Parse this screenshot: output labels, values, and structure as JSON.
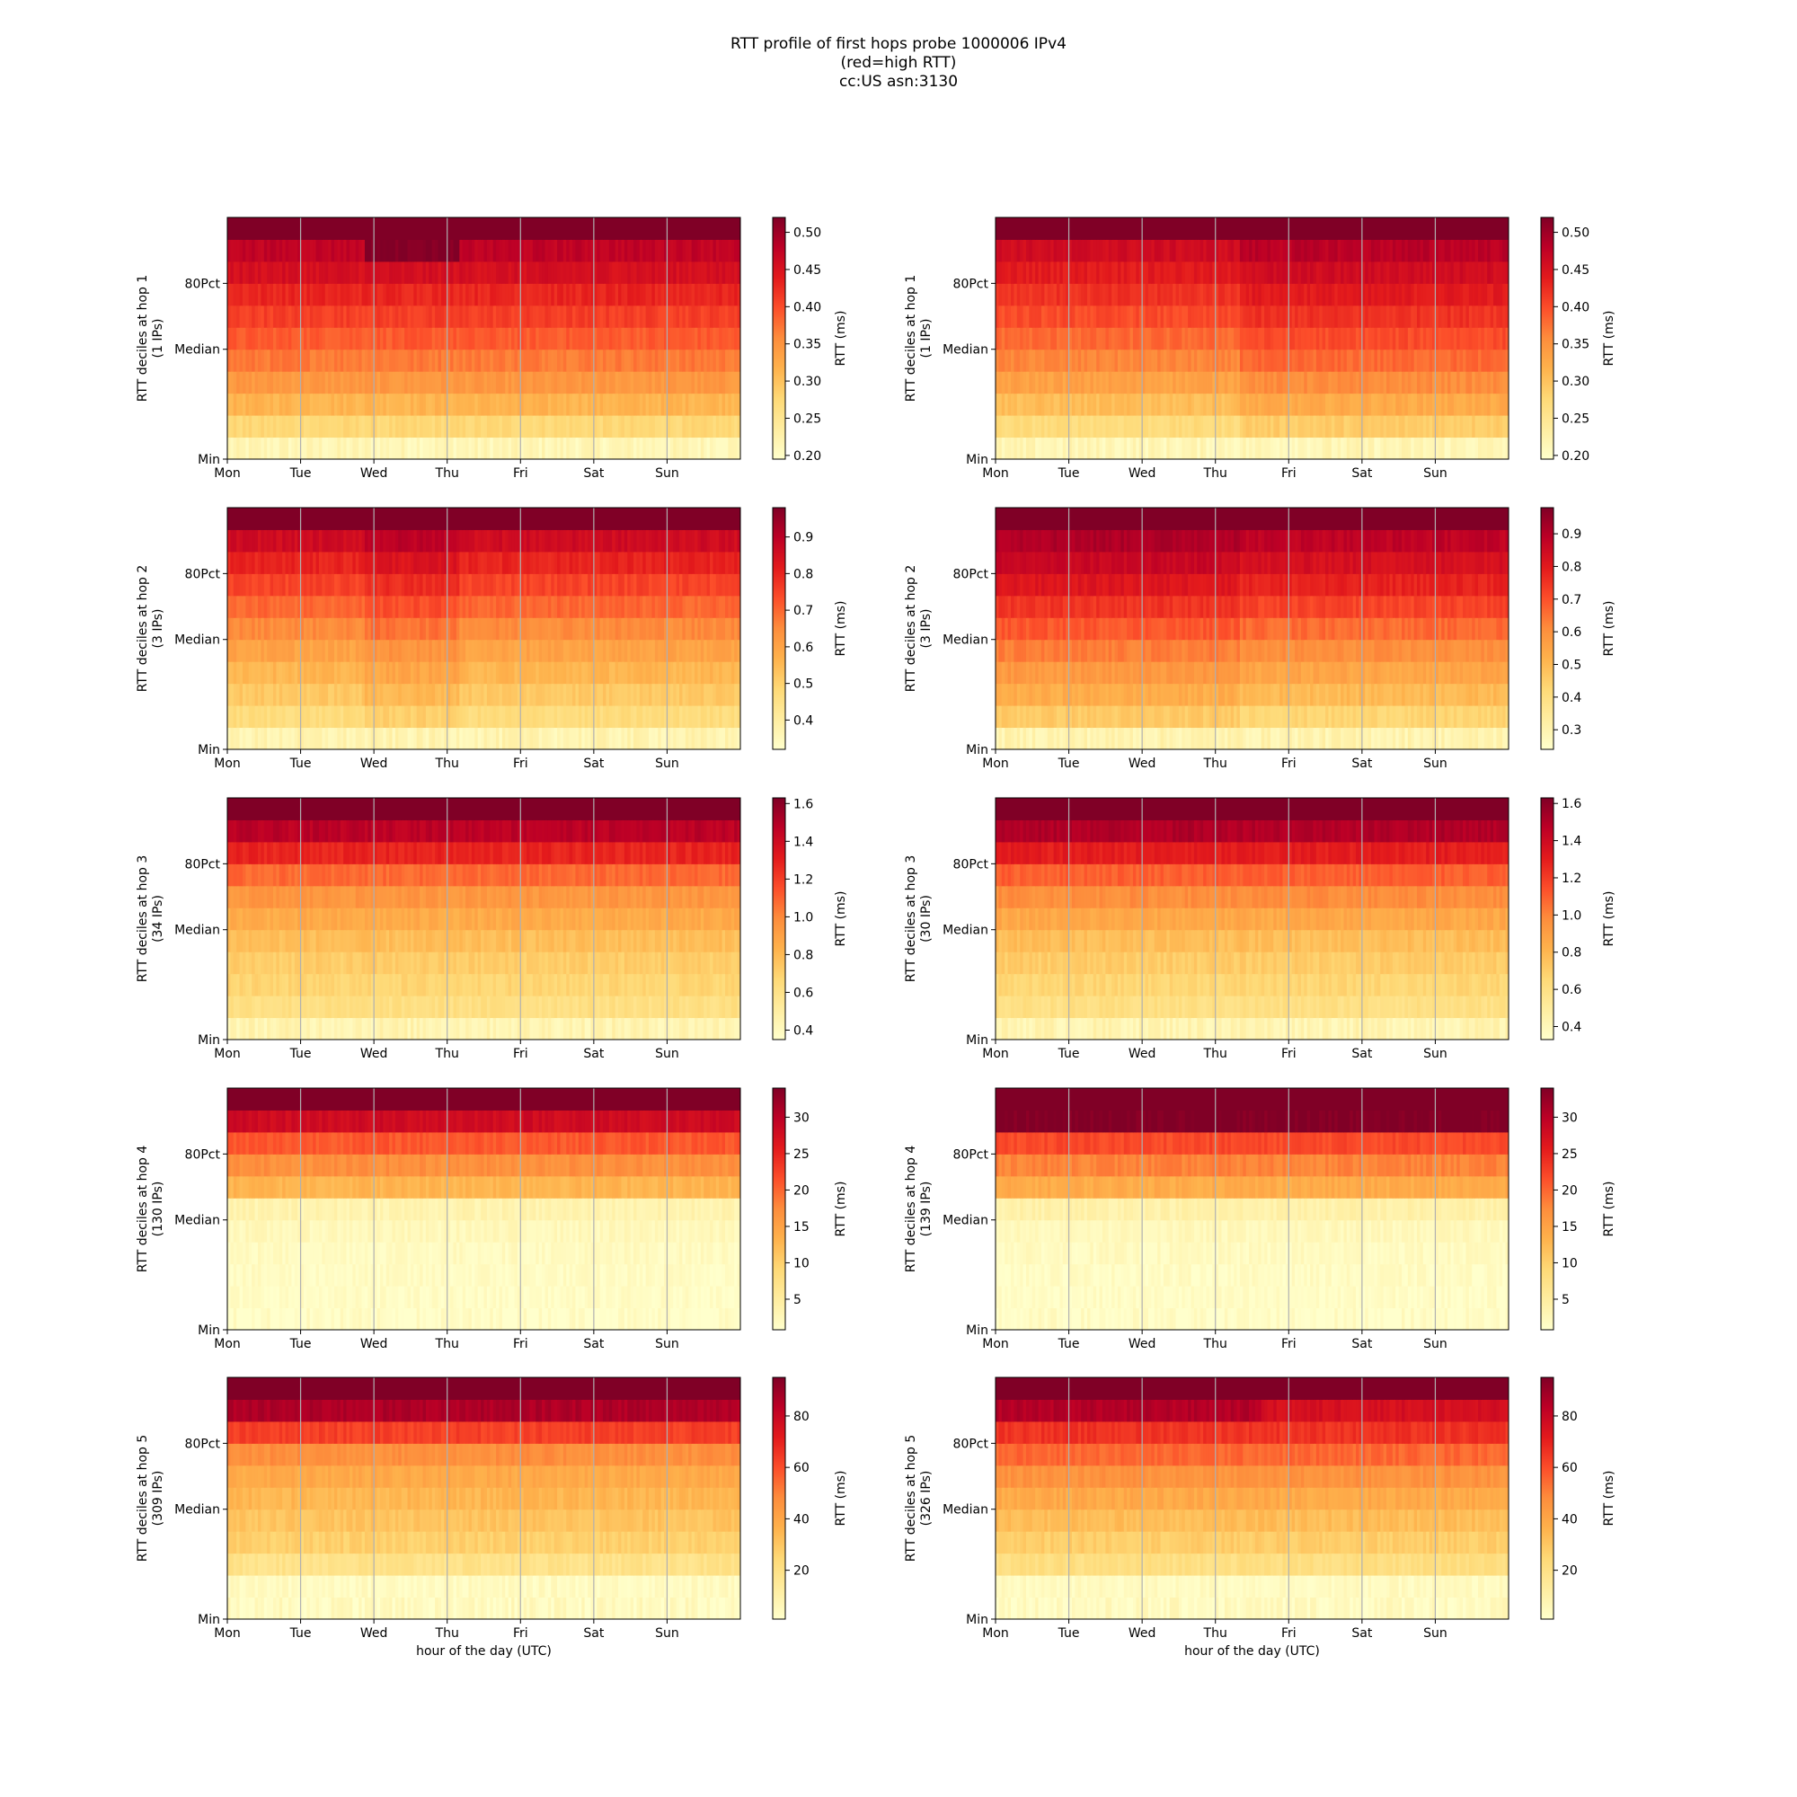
{
  "figure": {
    "title_lines": [
      "RTT profile of first hops probe 1000006 IPv4",
      "(red=high RTT)",
      "cc:US asn:3130"
    ]
  },
  "chart_data": [
    {
      "type": "heatmap",
      "hop": 1,
      "column": "left",
      "ylabel_lines": [
        "RTT deciles at hop 1",
        "(1 IPs)"
      ],
      "xlabel": "",
      "x_ticks": [
        "Mon",
        "Tue",
        "Wed",
        "Thu",
        "Fri",
        "Sat",
        "Sun"
      ],
      "y_ticks": [
        "Min",
        "Median",
        "80Pct"
      ],
      "colorbar": {
        "label": "RTT (ms)",
        "vmin": 0.195,
        "vmax": 0.52,
        "ticks": [
          0.2,
          0.25,
          0.3,
          0.35,
          0.4,
          0.45,
          0.5
        ],
        "tick_labels": [
          "0.20",
          "0.25",
          "0.30",
          "0.35",
          "0.40",
          "0.45",
          "0.50"
        ]
      },
      "rows_lo_to_hi": [
        0.215,
        0.275,
        0.315,
        0.345,
        0.37,
        0.39,
        0.41,
        0.43,
        0.455,
        0.475,
        0.52
      ],
      "anomaly": {
        "start_day": 1.85,
        "end_day": 3.15,
        "delta": 0.045,
        "affects_top_rows_from": 9
      }
    },
    {
      "type": "heatmap",
      "hop": 1,
      "column": "right",
      "ylabel_lines": [
        "RTT deciles at hop 1",
        "(1 IPs)"
      ],
      "xlabel": "",
      "x_ticks": [
        "Mon",
        "Tue",
        "Wed",
        "Thu",
        "Fri",
        "Sat",
        "Sun"
      ],
      "y_ticks": [
        "Min",
        "Median",
        "80Pct"
      ],
      "colorbar": {
        "label": "RTT (ms)",
        "vmin": 0.195,
        "vmax": 0.52,
        "ticks": [
          0.2,
          0.25,
          0.3,
          0.35,
          0.4,
          0.45,
          0.5
        ],
        "tick_labels": [
          "0.20",
          "0.25",
          "0.30",
          "0.35",
          "0.40",
          "0.45",
          "0.50"
        ]
      },
      "rows_lo_to_hi": [
        0.215,
        0.29,
        0.325,
        0.355,
        0.38,
        0.4,
        0.42,
        0.44,
        0.46,
        0.48,
        0.52
      ],
      "anomaly": {
        "start_day": 0.0,
        "end_day": 3.3,
        "delta": -0.02,
        "affects_top_rows_from": 1
      }
    },
    {
      "type": "heatmap",
      "hop": 2,
      "column": "left",
      "ylabel_lines": [
        "RTT deciles at hop 2",
        "(3 IPs)"
      ],
      "xlabel": "",
      "x_ticks": [
        "Mon",
        "Tue",
        "Wed",
        "Thu",
        "Fri",
        "Sat",
        "Sun"
      ],
      "y_ticks": [
        "Min",
        "Median",
        "80Pct"
      ],
      "colorbar": {
        "label": "RTT (ms)",
        "vmin": 0.32,
        "vmax": 0.98,
        "ticks": [
          0.4,
          0.5,
          0.6,
          0.7,
          0.8,
          0.9
        ],
        "tick_labels": [
          "0.4",
          "0.5",
          "0.6",
          "0.7",
          "0.8",
          "0.9"
        ]
      },
      "rows_lo_to_hi": [
        0.37,
        0.47,
        0.52,
        0.56,
        0.6,
        0.65,
        0.7,
        0.75,
        0.8,
        0.86,
        0.98
      ],
      "anomaly": {
        "start_day": 1.85,
        "end_day": 3.15,
        "delta": 0.035,
        "affects_top_rows_from": 1
      }
    },
    {
      "type": "heatmap",
      "hop": 2,
      "column": "right",
      "ylabel_lines": [
        "RTT deciles at hop 2",
        "(3 IPs)"
      ],
      "xlabel": "",
      "x_ticks": [
        "Mon",
        "Tue",
        "Wed",
        "Thu",
        "Fri",
        "Sat",
        "Sun"
      ],
      "y_ticks": [
        "Min",
        "Median",
        "80Pct"
      ],
      "colorbar": {
        "label": "RTT (ms)",
        "vmin": 0.24,
        "vmax": 0.98,
        "ticks": [
          0.3,
          0.4,
          0.5,
          0.6,
          0.7,
          0.8,
          0.9
        ],
        "tick_labels": [
          "0.3",
          "0.4",
          "0.5",
          "0.6",
          "0.7",
          "0.8",
          "0.9"
        ]
      },
      "rows_lo_to_hi": [
        0.3,
        0.43,
        0.5,
        0.55,
        0.6,
        0.66,
        0.72,
        0.78,
        0.83,
        0.88,
        0.98
      ],
      "anomaly": {
        "start_day": 0.0,
        "end_day": 3.3,
        "delta": 0.03,
        "affects_top_rows_from": 1
      }
    },
    {
      "type": "heatmap",
      "hop": 3,
      "column": "left",
      "ylabel_lines": [
        "RTT deciles at hop 3",
        "(34 IPs)"
      ],
      "xlabel": "",
      "x_ticks": [
        "Mon",
        "Tue",
        "Wed",
        "Thu",
        "Fri",
        "Sat",
        "Sun"
      ],
      "y_ticks": [
        "Min",
        "Median",
        "80Pct"
      ],
      "colorbar": {
        "label": "RTT (ms)",
        "vmin": 0.35,
        "vmax": 1.63,
        "ticks": [
          0.4,
          0.6,
          0.8,
          1.0,
          1.2,
          1.4,
          1.6
        ],
        "tick_labels": [
          "0.4",
          "0.6",
          "0.8",
          "1.0",
          "1.2",
          "1.4",
          "1.6"
        ]
      },
      "rows_lo_to_hi": [
        0.45,
        0.62,
        0.68,
        0.72,
        0.78,
        0.86,
        0.95,
        1.08,
        1.28,
        1.47,
        1.63
      ],
      "anomaly": null
    },
    {
      "type": "heatmap",
      "hop": 3,
      "column": "right",
      "ylabel_lines": [
        "RTT deciles at hop 3",
        "(30 IPs)"
      ],
      "xlabel": "",
      "x_ticks": [
        "Mon",
        "Tue",
        "Wed",
        "Thu",
        "Fri",
        "Sat",
        "Sun"
      ],
      "y_ticks": [
        "Min",
        "Median",
        "80Pct"
      ],
      "colorbar": {
        "label": "RTT (ms)",
        "vmin": 0.33,
        "vmax": 1.63,
        "ticks": [
          0.4,
          0.6,
          0.8,
          1.0,
          1.2,
          1.4,
          1.6
        ],
        "tick_labels": [
          "0.4",
          "0.6",
          "0.8",
          "1.0",
          "1.2",
          "1.4",
          "1.6"
        ]
      },
      "rows_lo_to_hi": [
        0.43,
        0.6,
        0.66,
        0.71,
        0.77,
        0.86,
        0.97,
        1.1,
        1.3,
        1.5,
        1.63
      ],
      "anomaly": null
    },
    {
      "type": "heatmap",
      "hop": 4,
      "column": "left",
      "ylabel_lines": [
        "RTT deciles at hop 4",
        "(130 IPs)"
      ],
      "xlabel": "",
      "x_ticks": [
        "Mon",
        "Tue",
        "Wed",
        "Thu",
        "Fri",
        "Sat",
        "Sun"
      ],
      "y_ticks": [
        "Min",
        "Median",
        "80Pct"
      ],
      "colorbar": {
        "label": "RTT (ms)",
        "vmin": 0.8,
        "vmax": 34,
        "ticks": [
          5,
          10,
          15,
          20,
          25,
          30
        ],
        "tick_labels": [
          "5",
          "10",
          "15",
          "20",
          "25",
          "30"
        ]
      },
      "rows_lo_to_hi": [
        1.2,
        1.4,
        1.6,
        1.9,
        2.4,
        3.5,
        13,
        17,
        21,
        28,
        34
      ],
      "anomaly": null
    },
    {
      "type": "heatmap",
      "hop": 4,
      "column": "right",
      "ylabel_lines": [
        "RTT deciles at hop 4",
        "(139 IPs)"
      ],
      "xlabel": "",
      "x_ticks": [
        "Mon",
        "Tue",
        "Wed",
        "Thu",
        "Fri",
        "Sat",
        "Sun"
      ],
      "y_ticks": [
        "Min",
        "Median",
        "80Pct"
      ],
      "colorbar": {
        "label": "RTT (ms)",
        "vmin": 0.8,
        "vmax": 34,
        "ticks": [
          5,
          10,
          15,
          20,
          25,
          30
        ],
        "tick_labels": [
          "5",
          "10",
          "15",
          "20",
          "25",
          "30"
        ]
      },
      "rows_lo_to_hi": [
        1.2,
        1.4,
        1.6,
        1.9,
        2.4,
        4,
        14,
        18,
        22,
        34,
        34
      ],
      "anomaly": null
    },
    {
      "type": "heatmap",
      "hop": 5,
      "column": "left",
      "ylabel_lines": [
        "RTT deciles at hop 5",
        "(309 IPs)"
      ],
      "xlabel": "hour of the day (UTC)",
      "x_ticks": [
        "Mon",
        "Tue",
        "Wed",
        "Thu",
        "Fri",
        "Sat",
        "Sun"
      ],
      "y_ticks": [
        "Min",
        "Median",
        "80Pct"
      ],
      "colorbar": {
        "label": "RTT (ms)",
        "vmin": 1,
        "vmax": 95,
        "ticks": [
          20,
          40,
          60,
          80
        ],
        "tick_labels": [
          "20",
          "40",
          "60",
          "80"
        ]
      },
      "rows_lo_to_hi": [
        4,
        4,
        19,
        27,
        31,
        35,
        39,
        47,
        63,
        86,
        95
      ],
      "anomaly": null
    },
    {
      "type": "heatmap",
      "hop": 5,
      "column": "right",
      "ylabel_lines": [
        "RTT deciles at hop 5",
        "(326 IPs)"
      ],
      "xlabel": "hour of the day (UTC)",
      "x_ticks": [
        "Mon",
        "Tue",
        "Wed",
        "Thu",
        "Fri",
        "Sat",
        "Sun"
      ],
      "y_ticks": [
        "Min",
        "Median",
        "80Pct"
      ],
      "colorbar": {
        "label": "RTT (ms)",
        "vmin": 1,
        "vmax": 95,
        "ticks": [
          20,
          40,
          60,
          80
        ],
        "tick_labels": [
          "20",
          "40",
          "60",
          "80"
        ]
      },
      "rows_lo_to_hi": [
        4,
        4,
        21,
        28,
        33,
        39,
        46,
        55,
        66,
        85,
        95
      ],
      "anomaly": {
        "start_day": 3.6,
        "end_day": 7.0,
        "delta": -9,
        "affects_top_rows_from": 9
      }
    }
  ]
}
